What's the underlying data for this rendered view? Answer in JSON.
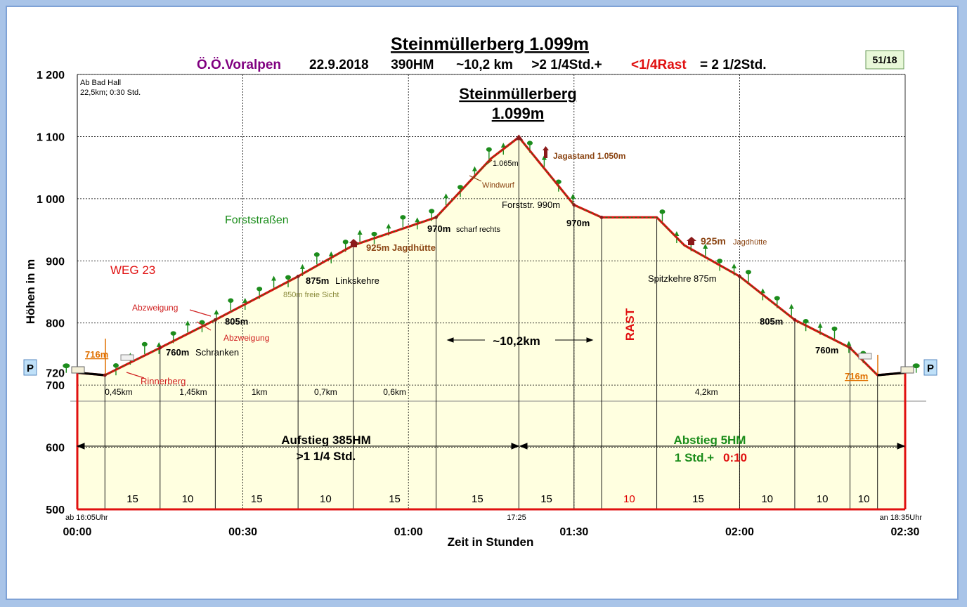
{
  "header": {
    "title": "Steinmüllerberg 1.099m",
    "region": "Ö.Ö.Voralpen",
    "info": "22.9.2018      390HM      ~10,2 km     >2 1/4Std.+",
    "rest": "<1/4Rast",
    "total": "= 2 1/2Std.",
    "badge": "51/18"
  },
  "chart_data": {
    "type": "area",
    "title": "Steinmüllerberg 1.099m",
    "xlabel": "Zeit in Stunden",
    "ylabel": "Höhen in m",
    "xlim": [
      0,
      150
    ],
    "ylim": [
      500,
      1200
    ],
    "x_ticks": [
      {
        "t": 0,
        "label": "00:00"
      },
      {
        "t": 30,
        "label": "00:30"
      },
      {
        "t": 60,
        "label": "01:00"
      },
      {
        "t": 90,
        "label": "01:30"
      },
      {
        "t": 120,
        "label": "02:00"
      },
      {
        "t": 150,
        "label": "02:30"
      }
    ],
    "y_ticks": [
      {
        "v": 1200,
        "label": "1 200"
      },
      {
        "v": 1100,
        "label": "1 100"
      },
      {
        "v": 1000,
        "label": "1 000"
      },
      {
        "v": 900,
        "label": "900"
      },
      {
        "v": 800,
        "label": "800"
      },
      {
        "v": 720,
        "label": "720"
      },
      {
        "v": 700,
        "label": "700"
      },
      {
        "v": 600,
        "label": "600"
      },
      {
        "v": 500,
        "label": "500"
      }
    ],
    "grid": true,
    "profile": [
      {
        "t": 0,
        "h": 720
      },
      {
        "t": 5,
        "h": 716
      },
      {
        "t": 15,
        "h": 760
      },
      {
        "t": 25,
        "h": 805
      },
      {
        "t": 40,
        "h": 875
      },
      {
        "t": 50,
        "h": 925
      },
      {
        "t": 65,
        "h": 970
      },
      {
        "t": 75,
        "h": 1065
      },
      {
        "t": 80,
        "h": 1099
      },
      {
        "t": 90,
        "h": 990
      },
      {
        "t": 95,
        "h": 970
      },
      {
        "t": 105,
        "h": 970
      },
      {
        "t": 110,
        "h": 925
      },
      {
        "t": 120,
        "h": 875
      },
      {
        "t": 130,
        "h": 805
      },
      {
        "t": 140,
        "h": 760
      },
      {
        "t": 145,
        "h": 716
      },
      {
        "t": 150,
        "h": 720
      }
    ],
    "segment_marks": [
      5,
      15,
      25,
      40,
      50,
      65,
      80,
      90,
      95,
      105,
      120,
      130,
      140,
      145
    ],
    "segment_minutes": [
      {
        "t": 10,
        "label": "15",
        "color": "#000000"
      },
      {
        "t": 20,
        "label": "10",
        "color": "#000000"
      },
      {
        "t": 32.5,
        "label": "15",
        "color": "#000000"
      },
      {
        "t": 45,
        "label": "10",
        "color": "#000000"
      },
      {
        "t": 57.5,
        "label": "15",
        "color": "#000000"
      },
      {
        "t": 72.5,
        "label": "15",
        "color": "#000000"
      },
      {
        "t": 85,
        "label": "15",
        "color": "#000000"
      },
      {
        "t": 100,
        "label": "10",
        "color": "#e00000"
      },
      {
        "t": 112.5,
        "label": "15",
        "color": "#000000"
      },
      {
        "t": 125,
        "label": "10",
        "color": "#000000"
      },
      {
        "t": 135,
        "label": "10",
        "color": "#000000"
      },
      {
        "t": 142.5,
        "label": "10",
        "color": "#000000"
      }
    ],
    "distances": [
      {
        "t": 7.5,
        "label": "0,45km"
      },
      {
        "t": 21,
        "label": "1,45km"
      },
      {
        "t": 33,
        "label": "1km"
      },
      {
        "t": 45,
        "label": "0,7km"
      },
      {
        "t": 57.5,
        "label": "0,6km"
      },
      {
        "t": 114,
        "label": "4,2km"
      }
    ],
    "annotations": {
      "start_info_1": "Ab Bad Hall",
      "start_info_2": "22,5km; 0:30 Std.",
      "summit_1": "Steinmüllerberg",
      "summit_2": "1.099m",
      "forststrassen": "Forststraßen",
      "weg": "WEG 23",
      "abzweigung_1": "Abzweigung",
      "abzweigung_2": "Abzweigung",
      "rinnerberg": "Rinnerberg",
      "p716_left": "716m",
      "p716_right": "716m",
      "p760_left": "760m",
      "schranken": "Schranken",
      "p805_left": "805m",
      "freie_sicht": "850m freie Sicht",
      "p875_left": "875m",
      "linkskehre": "Linkskehre",
      "p925_left": "925m Jagdhütte",
      "p970_left": "970m",
      "scharf_rechts": "scharf rechts",
      "p1065": "1.065m",
      "windwurf": "Windwurf",
      "jagastand": "Jagastand 1.050m",
      "forststr990": "Forststr. 990m",
      "p970_right": "970m",
      "p925_right": "925m",
      "jagdhuette_right": "Jagdhütte",
      "spitzkehre": "Spitzkehre 875m",
      "p805_right": "805m",
      "p760_right": "760m",
      "distance_total": "~10,2km",
      "rast": "RAST",
      "aufstieg_1": "Aufstieg 385HM",
      "aufstieg_2": ">1 1/4 Std.",
      "abstieg_1": "Abstieg 5HM",
      "abstieg_2a": "1 Std.+",
      "abstieg_2b": "0:10",
      "start_time": "ab 16:05Uhr",
      "summit_time": "17:25",
      "end_time": "an 18:35Uhr",
      "parking": "P"
    }
  },
  "colors": {
    "profile_line": "#e01010",
    "fill": "#ffffe0",
    "tree": "#1c8c1c",
    "accent_purple": "#800080",
    "accent_orange": "#e07000",
    "accent_brown": "#8b4513",
    "green_text": "#1a8c1a"
  }
}
